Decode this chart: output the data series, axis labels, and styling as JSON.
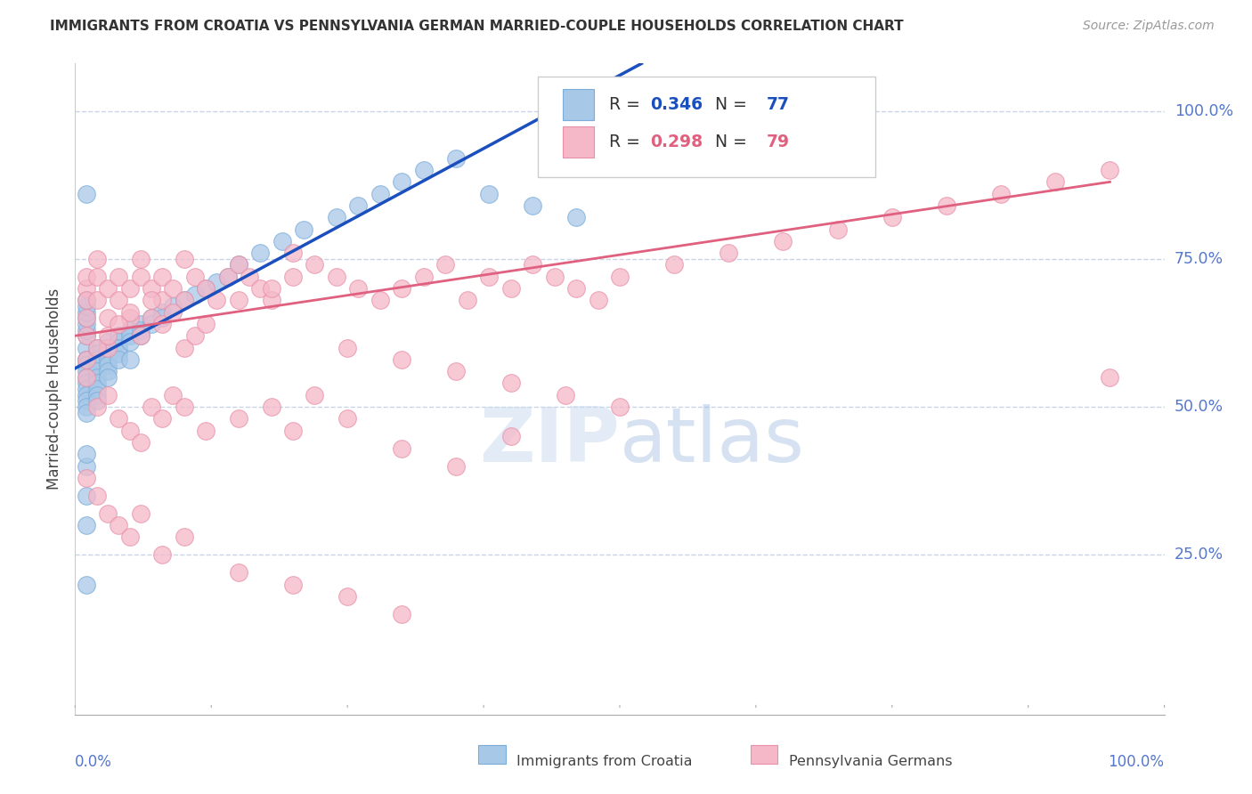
{
  "title": "IMMIGRANTS FROM CROATIA VS PENNSYLVANIA GERMAN MARRIED-COUPLE HOUSEHOLDS CORRELATION CHART",
  "source": "Source: ZipAtlas.com",
  "ylabel": "Married-couple Households",
  "blue_R": "0.346",
  "blue_N": "77",
  "pink_R": "0.298",
  "pink_N": "79",
  "legend_label_blue": "Immigrants from Croatia",
  "legend_label_pink": "Pennsylvania Germans",
  "blue_color": "#a8c8e8",
  "pink_color": "#f5b8c8",
  "blue_edge_color": "#7aadda",
  "pink_edge_color": "#e890a8",
  "blue_line_color": "#1a4fbd",
  "pink_line_color": "#e06080",
  "ytick_labels": [
    "100.0%",
    "75.0%",
    "50.0%",
    "25.0%"
  ],
  "ytick_positions": [
    1.0,
    0.75,
    0.5,
    0.25
  ],
  "blue_scatter_x": [
    0.001,
    0.001,
    0.001,
    0.001,
    0.001,
    0.001,
    0.001,
    0.001,
    0.001,
    0.001,
    0.001,
    0.001,
    0.001,
    0.001,
    0.001,
    0.001,
    0.001,
    0.001,
    0.001,
    0.002,
    0.002,
    0.002,
    0.002,
    0.002,
    0.002,
    0.002,
    0.002,
    0.002,
    0.002,
    0.003,
    0.003,
    0.003,
    0.003,
    0.003,
    0.003,
    0.003,
    0.004,
    0.004,
    0.004,
    0.004,
    0.004,
    0.005,
    0.005,
    0.005,
    0.005,
    0.006,
    0.006,
    0.006,
    0.007,
    0.007,
    0.008,
    0.008,
    0.009,
    0.01,
    0.011,
    0.012,
    0.013,
    0.014,
    0.015,
    0.017,
    0.019,
    0.021,
    0.024,
    0.026,
    0.028,
    0.03,
    0.032,
    0.035,
    0.038,
    0.042,
    0.046,
    0.001,
    0.001,
    0.001,
    0.001,
    0.001,
    0.001
  ],
  "blue_scatter_y": [
    0.58,
    0.6,
    0.62,
    0.63,
    0.64,
    0.65,
    0.66,
    0.67,
    0.68,
    0.58,
    0.57,
    0.56,
    0.55,
    0.54,
    0.53,
    0.52,
    0.51,
    0.5,
    0.49,
    0.6,
    0.59,
    0.58,
    0.57,
    0.56,
    0.55,
    0.54,
    0.53,
    0.52,
    0.51,
    0.61,
    0.6,
    0.59,
    0.58,
    0.57,
    0.56,
    0.55,
    0.62,
    0.61,
    0.6,
    0.59,
    0.58,
    0.63,
    0.62,
    0.61,
    0.58,
    0.64,
    0.63,
    0.62,
    0.65,
    0.64,
    0.66,
    0.65,
    0.67,
    0.68,
    0.69,
    0.7,
    0.71,
    0.72,
    0.74,
    0.76,
    0.78,
    0.8,
    0.82,
    0.84,
    0.86,
    0.88,
    0.9,
    0.92,
    0.86,
    0.84,
    0.82,
    0.86,
    0.4,
    0.35,
    0.3,
    0.42,
    0.2
  ],
  "pink_scatter_x": [
    0.001,
    0.001,
    0.001,
    0.001,
    0.001,
    0.002,
    0.002,
    0.002,
    0.003,
    0.003,
    0.003,
    0.004,
    0.004,
    0.005,
    0.005,
    0.006,
    0.006,
    0.007,
    0.007,
    0.008,
    0.008,
    0.009,
    0.01,
    0.01,
    0.011,
    0.012,
    0.013,
    0.014,
    0.015,
    0.016,
    0.017,
    0.018,
    0.02,
    0.022,
    0.024,
    0.026,
    0.028,
    0.03,
    0.032,
    0.034,
    0.036,
    0.038,
    0.04,
    0.042,
    0.044,
    0.046,
    0.048,
    0.05,
    0.055,
    0.06,
    0.065,
    0.07,
    0.075,
    0.08,
    0.085,
    0.09,
    0.095,
    0.001,
    0.002,
    0.003,
    0.004,
    0.005,
    0.006,
    0.007,
    0.008,
    0.009,
    0.01,
    0.011,
    0.012,
    0.015,
    0.018,
    0.02,
    0.025,
    0.03,
    0.035,
    0.04,
    0.045,
    0.05,
    0.095
  ],
  "pink_scatter_y": [
    0.65,
    0.7,
    0.72,
    0.68,
    0.62,
    0.68,
    0.72,
    0.75,
    0.7,
    0.65,
    0.6,
    0.68,
    0.72,
    0.65,
    0.7,
    0.72,
    0.75,
    0.7,
    0.65,
    0.68,
    0.72,
    0.7,
    0.75,
    0.68,
    0.72,
    0.7,
    0.68,
    0.72,
    0.74,
    0.72,
    0.7,
    0.68,
    0.76,
    0.74,
    0.72,
    0.7,
    0.68,
    0.7,
    0.72,
    0.74,
    0.68,
    0.72,
    0.7,
    0.74,
    0.72,
    0.7,
    0.68,
    0.72,
    0.74,
    0.76,
    0.78,
    0.8,
    0.82,
    0.84,
    0.86,
    0.88,
    0.9,
    0.58,
    0.6,
    0.62,
    0.64,
    0.66,
    0.62,
    0.68,
    0.64,
    0.66,
    0.6,
    0.62,
    0.64,
    0.68,
    0.7,
    0.72,
    0.6,
    0.58,
    0.56,
    0.54,
    0.52,
    0.5,
    0.55
  ],
  "pink_low_x": [
    0.001,
    0.002,
    0.003,
    0.004,
    0.005,
    0.006,
    0.007,
    0.008,
    0.009,
    0.01,
    0.012,
    0.015,
    0.018,
    0.02,
    0.022,
    0.025,
    0.03,
    0.035,
    0.04
  ],
  "pink_low_y": [
    0.55,
    0.5,
    0.52,
    0.48,
    0.46,
    0.44,
    0.5,
    0.48,
    0.52,
    0.5,
    0.46,
    0.48,
    0.5,
    0.46,
    0.52,
    0.48,
    0.43,
    0.4,
    0.45
  ],
  "pink_vlow_x": [
    0.001,
    0.002,
    0.003,
    0.004,
    0.005,
    0.006,
    0.008,
    0.01,
    0.015,
    0.02,
    0.025,
    0.03
  ],
  "pink_vlow_y": [
    0.38,
    0.35,
    0.32,
    0.3,
    0.28,
    0.32,
    0.25,
    0.28,
    0.22,
    0.2,
    0.18,
    0.15
  ],
  "blue_line_x": [
    0.0,
    0.052
  ],
  "blue_line_y": [
    0.565,
    1.08
  ],
  "pink_line_x": [
    0.0,
    0.095
  ],
  "pink_line_y": [
    0.62,
    0.88
  ],
  "xlim": [
    0.0,
    0.1
  ],
  "ylim": [
    -0.02,
    1.08
  ],
  "background_color": "#ffffff",
  "grid_color": "#c8d4e8",
  "title_color": "#333333",
  "source_color": "#999999",
  "axis_label_color": "#5577cc",
  "ylabel_color": "#444444"
}
